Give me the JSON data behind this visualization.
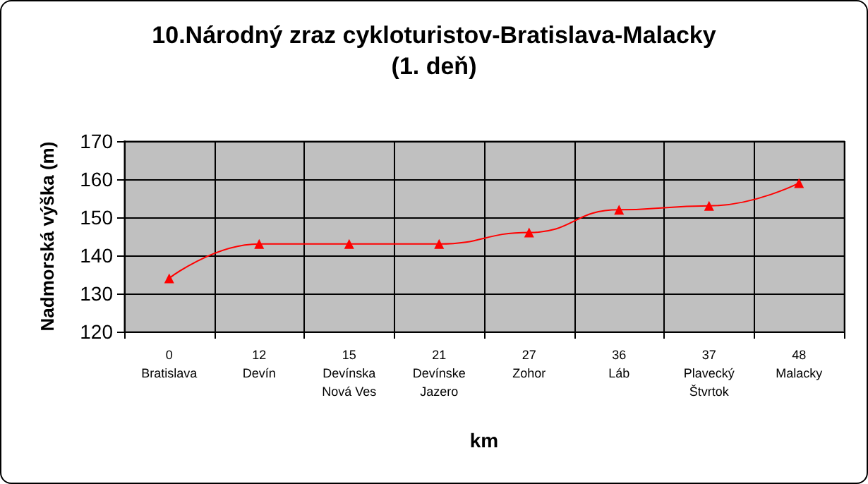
{
  "chart_data": {
    "type": "line",
    "title": "10.Národný zraz cykloturistov-Bratislava-Malacky\n(1. deň)",
    "xlabel": "km",
    "ylabel": "Nadmorská výška (m)",
    "categories": [
      "0\nBratislava",
      "12\nDevín",
      "15\nDevínska\nNová Ves",
      "21\nDevínske\nJazero",
      "27\nZohor",
      "36\nLáb",
      "37\nPlavecký\nŠtvrtok",
      "48\nMalacky"
    ],
    "series": [
      {
        "color": "#ff0000",
        "values": [
          134,
          143,
          143,
          143,
          146,
          152,
          153,
          159
        ]
      }
    ],
    "ylim": [
      120,
      170
    ],
    "yticks": [
      120,
      130,
      140,
      150,
      160,
      170
    ],
    "grid": true,
    "marker": "triangle",
    "line_style": "solid"
  }
}
